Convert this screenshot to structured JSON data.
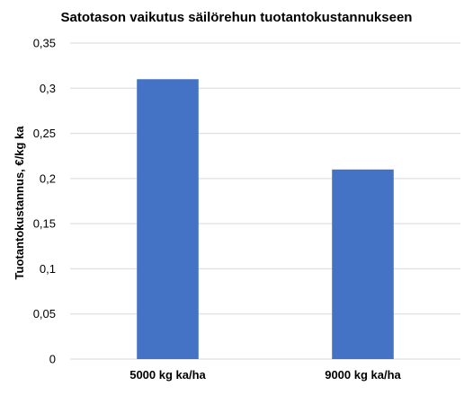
{
  "chart_data": {
    "type": "bar",
    "title": "Satotason vaikutus säilörehun tuotantokustannukseen",
    "xlabel": "",
    "ylabel": "Tuotantokustannus, €/kg ka",
    "categories": [
      "5000 kg ka/ha",
      "9000 kg ka/ha"
    ],
    "values": [
      0.31,
      0.21
    ],
    "ylim": [
      0,
      0.35
    ],
    "yticks": [
      0,
      0.05,
      0.1,
      0.15,
      0.2,
      0.25,
      0.3,
      0.35
    ],
    "ytick_labels": [
      "0",
      "0,05",
      "0,1",
      "0,15",
      "0,2",
      "0,25",
      "0,3",
      "0,35"
    ],
    "grid": true,
    "legend": "none",
    "bar_color": "#4472C4",
    "grid_color": "#D9D9D9"
  }
}
